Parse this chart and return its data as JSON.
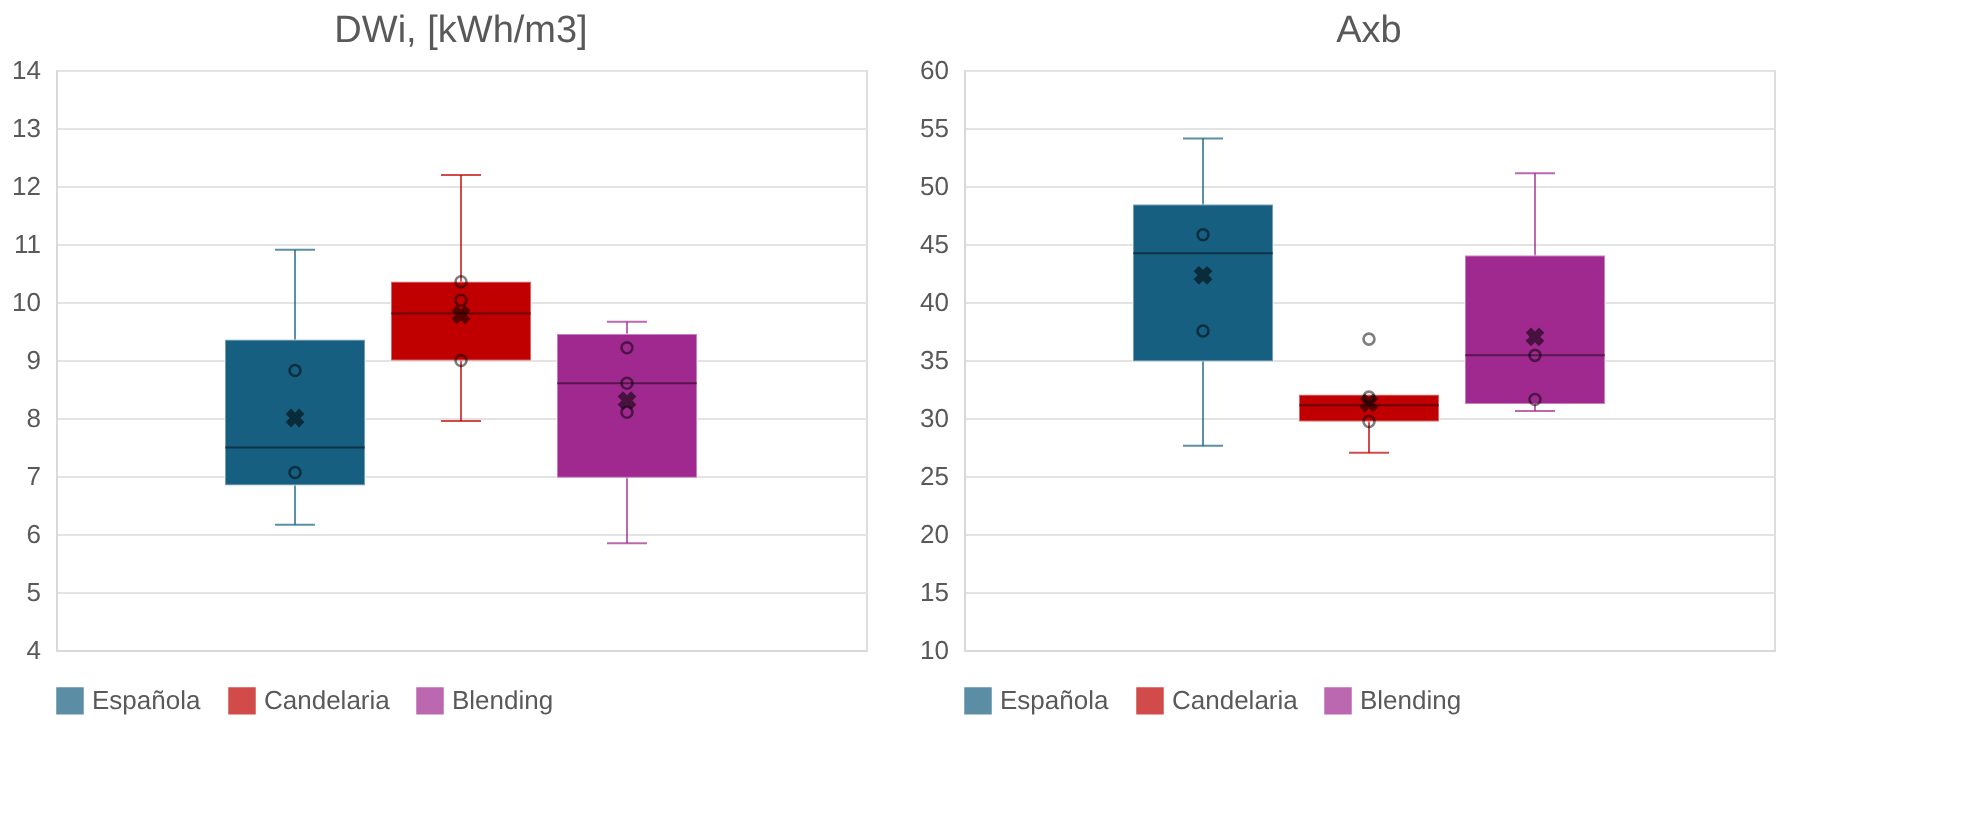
{
  "chart_data": [
    {
      "type": "box",
      "title": "DWi, [kWh/m3]",
      "categories": [
        null
      ],
      "ylim": [
        4,
        14
      ],
      "yticks": [
        4,
        5,
        6,
        7,
        8,
        9,
        10,
        11,
        12,
        13,
        14
      ],
      "grid": "y",
      "legend": "bottom",
      "series": [
        {
          "name": "Española",
          "color": "#175f80",
          "boxes": [
            {
              "low": 6.16,
              "q1": 6.84,
              "median": 7.49,
              "q3": 9.35,
              "high": 10.9,
              "mean": 8.0,
              "outliers": [
                8.82,
                7.06
              ]
            }
          ]
        },
        {
          "name": "Candelaria",
          "color": "#c00000",
          "boxes": [
            {
              "low": 7.95,
              "q1": 8.99,
              "median": 9.8,
              "q3": 10.35,
              "high": 12.19,
              "mean": 9.78,
              "outliers": [
                10.35,
                10.03,
                8.99
              ]
            }
          ]
        },
        {
          "name": "Blending",
          "color": "#a0298f",
          "boxes": [
            {
              "low": 5.84,
              "q1": 6.97,
              "median": 8.6,
              "q3": 9.45,
              "high": 9.66,
              "mean": 8.3,
              "outliers": [
                9.21,
                8.6,
                8.1
              ]
            }
          ]
        }
      ]
    },
    {
      "type": "box",
      "title": "Axb",
      "categories": [
        null
      ],
      "ylim": [
        10,
        60
      ],
      "yticks": [
        10,
        15,
        20,
        25,
        30,
        35,
        40,
        45,
        50,
        55,
        60
      ],
      "grid": "y",
      "legend": "bottom",
      "series": [
        {
          "name": "Española",
          "color": "#175f80",
          "boxes": [
            {
              "low": 27.6,
              "q1": 34.9,
              "median": 44.2,
              "q3": 48.4,
              "high": 54.1,
              "mean": 42.3,
              "outliers": [
                45.8,
                37.5
              ]
            }
          ]
        },
        {
          "name": "Candelaria",
          "color": "#c00000",
          "boxes": [
            {
              "low": 27.0,
              "q1": 29.7,
              "median": 31.1,
              "q3": 32.0,
              "high": 32.0,
              "mean": 31.3,
              "outliers": [
                36.8,
                31.8,
                29.7
              ]
            }
          ]
        },
        {
          "name": "Blending",
          "color": "#a0298f",
          "boxes": [
            {
              "low": 30.6,
              "q1": 31.2,
              "median": 35.4,
              "q3": 44.0,
              "high": 51.1,
              "mean": 37.0,
              "outliers": [
                35.4,
                31.6
              ]
            }
          ]
        }
      ]
    }
  ]
}
